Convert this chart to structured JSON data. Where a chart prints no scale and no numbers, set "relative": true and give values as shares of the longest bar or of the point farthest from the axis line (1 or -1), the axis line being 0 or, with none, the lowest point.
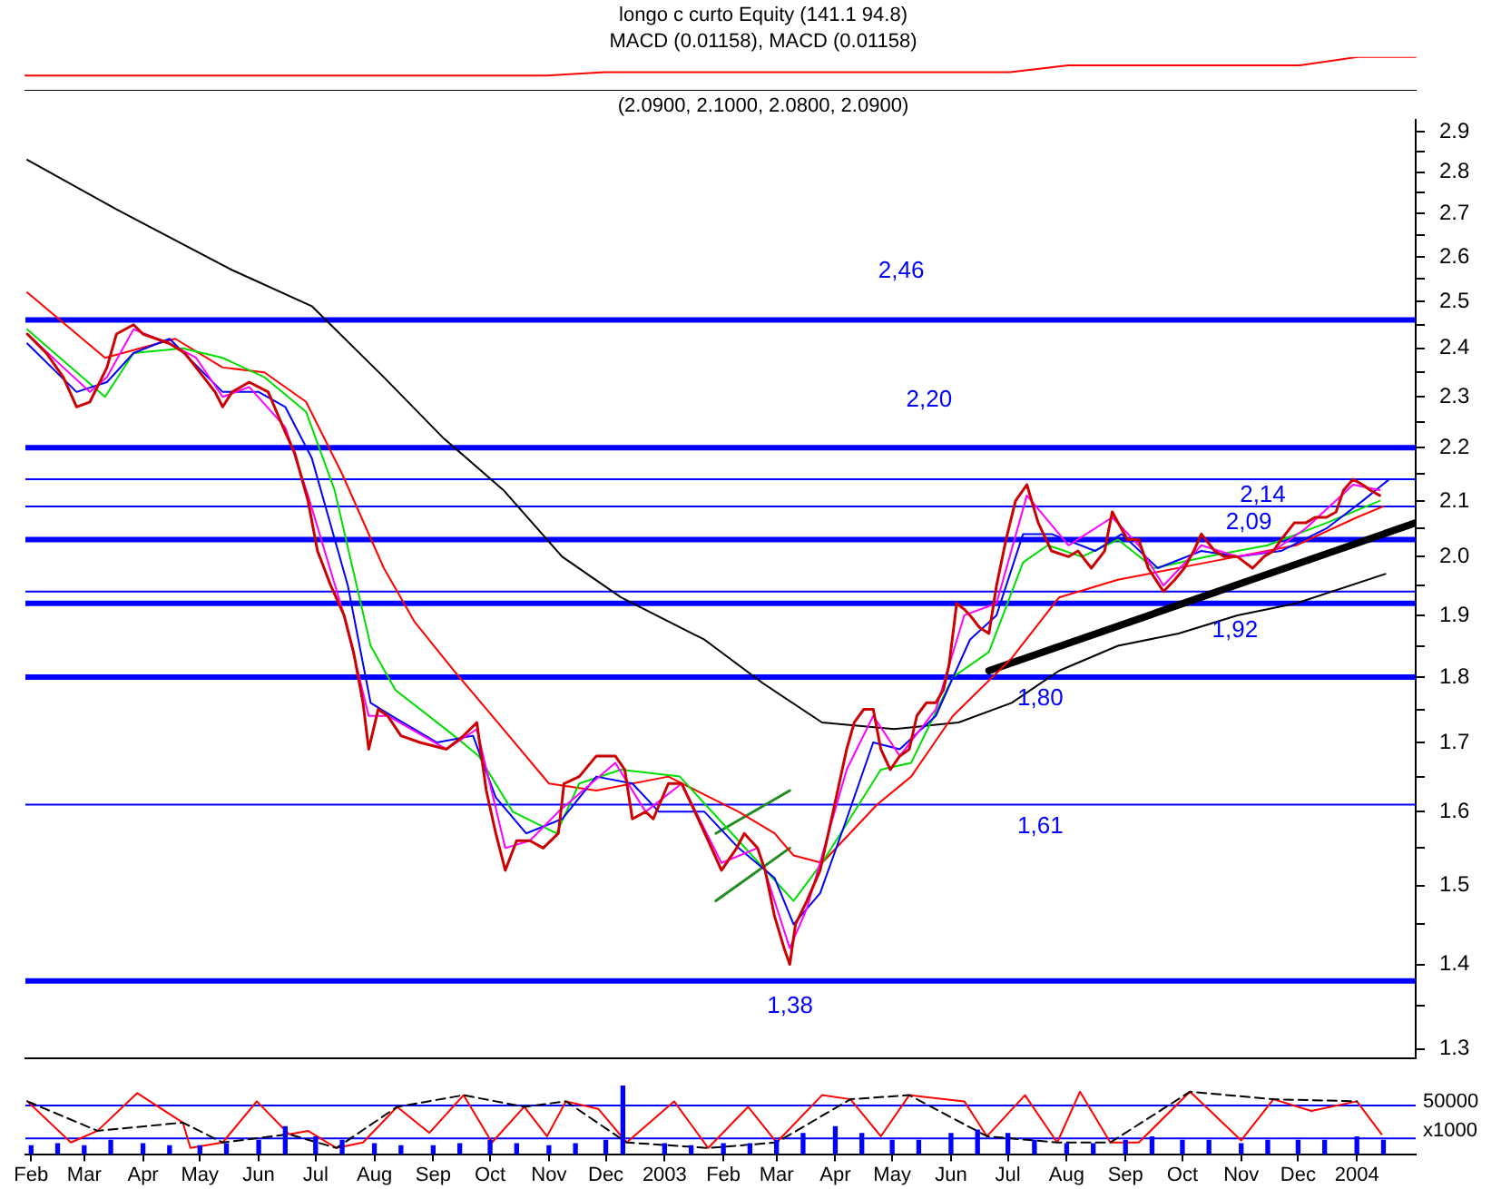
{
  "chart_data": [
    {
      "type": "line",
      "title": "longo c curto Equity (141.1 94.8)",
      "subtitle": "MACD (0.01158), MACD (0.01158)",
      "relative": true,
      "tick_labels": false,
      "categories": [
        null,
        null,
        null,
        null,
        null,
        null,
        null,
        null,
        null,
        null,
        null,
        null,
        null,
        null,
        null,
        null,
        null,
        null,
        null,
        null,
        null,
        null,
        null,
        null,
        null
      ],
      "series": [
        {
          "color": "#ff0000",
          "values": [
            0.45,
            0.45,
            0.45,
            0.45,
            0.45,
            0.45,
            0.45,
            0.45,
            0.45,
            0.45,
            0.55,
            0.55,
            0.55,
            0.55,
            0.55,
            0.55,
            0.55,
            0.55,
            0.75,
            0.75,
            0.75,
            0.75,
            0.75,
            1.0,
            1.0
          ]
        }
      ]
    },
    {
      "type": "line",
      "title": "(2.0900, 2.1000, 2.0800, 2.0900)",
      "log": true,
      "tick_labels": "y",
      "xlim": [
        "2002-01-29",
        "2004-02-01"
      ],
      "ylim": [
        1.29,
        2.93
      ],
      "yticks": [
        1.3,
        {
          "value": 1.35,
          "label": null
        },
        1.4,
        {
          "value": 1.45,
          "label": null
        },
        1.5,
        {
          "value": 1.55,
          "label": null
        },
        1.6,
        {
          "value": 1.65,
          "label": null
        },
        1.7,
        {
          "value": 1.75,
          "label": null
        },
        1.8,
        {
          "value": 1.85,
          "label": null
        },
        1.9,
        {
          "value": 1.95,
          "label": null
        },
        {
          "value": 2,
          "label": "2.0"
        },
        {
          "value": 2.05,
          "label": null
        },
        2.1,
        {
          "value": 2.15,
          "label": null
        },
        2.2,
        {
          "value": 2.25,
          "label": null
        },
        2.3,
        {
          "value": 2.35,
          "label": null
        },
        2.4,
        {
          "value": 2.45,
          "label": null
        },
        2.5,
        {
          "value": 2.55,
          "label": null
        },
        2.6,
        {
          "value": 2.65,
          "label": null
        },
        2.7,
        {
          "value": 2.75,
          "label": null
        },
        2.8,
        {
          "value": 2.85,
          "label": null
        },
        2.9
      ],
      "series": [
        {
          "color": "#cc0000",
          "x": [
            "2002-01-30",
            "2002-02-09",
            "2002-02-18",
            "2002-02-25",
            "2002-03-04",
            "2002-03-13",
            "2002-03-18",
            "2002-03-27",
            "2002-04-01",
            "2002-04-15",
            "2002-04-23",
            "2002-04-29",
            "2002-05-09",
            "2002-05-13",
            "2002-05-18",
            "2002-05-27",
            "2002-06-06",
            "2002-06-15",
            "2002-06-20",
            "2002-06-27",
            "2002-07-02",
            "2002-07-09",
            "2002-07-16",
            "2002-07-21",
            "2002-07-26",
            "2002-07-29",
            "2002-08-03",
            "2002-08-08",
            "2002-08-15",
            "2002-08-25",
            "2002-09-08",
            "2002-09-17",
            "2002-09-24",
            "2002-09-29",
            "2002-10-04",
            "2002-10-09",
            "2002-10-15",
            "2002-10-22",
            "2002-10-29",
            "2002-11-06",
            "2002-11-09",
            "2002-11-17",
            "2002-11-26",
            "2002-12-06",
            "2002-12-11",
            "2002-12-15",
            "2002-12-22",
            "2002-12-26",
            "2003-01-03",
            "2003-01-10",
            "2003-01-17",
            "2003-01-24",
            "2003-01-31",
            "2003-02-08",
            "2003-02-12",
            "2003-02-19",
            "2003-02-23",
            "2003-02-28",
            "2003-03-05",
            "2003-03-08",
            "2003-03-11",
            "2003-03-17",
            "2003-03-24",
            "2003-03-30",
            "2003-04-07",
            "2003-04-11",
            "2003-04-16",
            "2003-04-21",
            "2003-04-25",
            "2003-04-30",
            "2003-05-05",
            "2003-05-10",
            "2003-05-14",
            "2003-05-19",
            "2003-05-24",
            "2003-05-28",
            "2003-05-31",
            "2003-06-04",
            "2003-06-08",
            "2003-06-11",
            "2003-06-16",
            "2003-06-21",
            "2003-06-25",
            "2003-06-30",
            "2003-07-05",
            "2003-07-11",
            "2003-07-17",
            "2003-07-24",
            "2003-08-02",
            "2003-08-07",
            "2003-08-14",
            "2003-08-21",
            "2003-08-25",
            "2003-09-02",
            "2003-09-08",
            "2003-09-13",
            "2003-09-21",
            "2003-09-27",
            "2003-10-02",
            "2003-10-07",
            "2003-10-11",
            "2003-10-18",
            "2003-10-23",
            "2003-10-30",
            "2003-11-07",
            "2003-11-13",
            "2003-11-18",
            "2003-11-22",
            "2003-11-29",
            "2003-12-05",
            "2003-12-10",
            "2003-12-16",
            "2003-12-21",
            "2003-12-25",
            "2003-12-30",
            "2004-01-04",
            "2004-01-08",
            "2004-01-13"
          ],
          "values": [
            2.43,
            2.39,
            2.34,
            2.28,
            2.29,
            2.36,
            2.43,
            2.45,
            2.43,
            2.41,
            2.39,
            2.36,
            2.31,
            2.28,
            2.31,
            2.33,
            2.31,
            2.23,
            2.19,
            2.1,
            2.01,
            1.95,
            1.9,
            1.84,
            1.76,
            1.69,
            1.75,
            1.74,
            1.71,
            1.7,
            1.69,
            1.71,
            1.73,
            1.63,
            1.57,
            1.52,
            1.56,
            1.56,
            1.55,
            1.57,
            1.64,
            1.65,
            1.68,
            1.68,
            1.66,
            1.59,
            1.6,
            1.59,
            1.64,
            1.64,
            1.6,
            1.56,
            1.52,
            1.55,
            1.57,
            1.55,
            1.52,
            1.46,
            1.42,
            1.4,
            1.45,
            1.48,
            1.52,
            1.59,
            1.69,
            1.73,
            1.75,
            1.75,
            1.69,
            1.66,
            1.68,
            1.69,
            1.74,
            1.76,
            1.76,
            1.78,
            1.82,
            1.92,
            1.91,
            1.9,
            1.88,
            1.87,
            1.95,
            2.03,
            2.1,
            2.13,
            2.06,
            2.01,
            2.0,
            2.01,
            1.98,
            2.01,
            2.08,
            2.03,
            2.03,
            1.98,
            1.94,
            1.96,
            1.98,
            2.01,
            2.04,
            2.01,
            2.0,
            2.0,
            1.98,
            2.0,
            2.01,
            2.03,
            2.06,
            2.06,
            2.07,
            2.07,
            2.08,
            2.12,
            2.14,
            2.13,
            2.12,
            2.11
          ]
        },
        {
          "color": "#ff00ff",
          "x": [
            "2002-01-30",
            "2002-02-18",
            "2002-03-04",
            "2002-03-13",
            "2002-03-27",
            "2002-04-15",
            "2002-04-29",
            "2002-05-13",
            "2002-05-27",
            "2002-06-15",
            "2002-06-27",
            "2002-07-16",
            "2002-07-29",
            "2002-08-08",
            "2002-09-08",
            "2002-09-24",
            "2002-10-09",
            "2002-10-22",
            "2002-11-06",
            "2002-12-06",
            "2002-12-22",
            "2003-01-10",
            "2003-01-31",
            "2003-02-19",
            "2003-03-08",
            "2003-03-17",
            "2003-04-07",
            "2003-04-21",
            "2003-05-05",
            "2003-05-24",
            "2003-06-08",
            "2003-06-25",
            "2003-07-11",
            "2003-08-02",
            "2003-08-25",
            "2003-09-08",
            "2003-09-21",
            "2003-10-11",
            "2003-10-30",
            "2003-11-18",
            "2003-12-05",
            "2003-12-30",
            "2004-01-13"
          ],
          "values": [
            2.43,
            2.36,
            2.31,
            2.34,
            2.44,
            2.41,
            2.38,
            2.3,
            2.32,
            2.24,
            2.11,
            1.9,
            1.74,
            1.74,
            1.69,
            1.72,
            1.55,
            1.56,
            1.6,
            1.67,
            1.6,
            1.64,
            1.53,
            1.55,
            1.42,
            1.47,
            1.66,
            1.74,
            1.68,
            1.75,
            1.9,
            1.92,
            2.11,
            2.02,
            2.07,
            2.02,
            1.95,
            2.02,
            2.0,
            2.01,
            2.05,
            2.13,
            2.12
          ]
        },
        {
          "color": "#0000ff",
          "x": [
            "2002-01-30",
            "2002-02-25",
            "2002-03-13",
            "2002-03-27",
            "2002-04-15",
            "2002-05-13",
            "2002-06-01",
            "2002-06-15",
            "2002-06-29",
            "2002-07-18",
            "2002-07-30",
            "2002-08-10",
            "2002-09-03",
            "2002-09-22",
            "2002-10-04",
            "2002-10-20",
            "2002-11-08",
            "2002-11-26",
            "2002-12-15",
            "2002-12-29",
            "2003-01-22",
            "2003-02-09",
            "2003-02-28",
            "2003-03-10",
            "2003-03-24",
            "2003-04-07",
            "2003-04-21",
            "2003-05-05",
            "2003-05-24",
            "2003-06-11",
            "2003-06-25",
            "2003-07-09",
            "2003-07-24",
            "2003-08-16",
            "2003-08-30",
            "2003-09-18",
            "2003-10-11",
            "2003-10-30",
            "2003-11-22",
            "2003-12-16",
            "2004-01-04",
            "2004-01-18"
          ],
          "values": [
            2.41,
            2.31,
            2.33,
            2.39,
            2.42,
            2.31,
            2.31,
            2.28,
            2.18,
            1.95,
            1.76,
            1.74,
            1.7,
            1.71,
            1.62,
            1.57,
            1.59,
            1.65,
            1.64,
            1.6,
            1.6,
            1.55,
            1.51,
            1.45,
            1.49,
            1.59,
            1.7,
            1.69,
            1.74,
            1.86,
            1.9,
            2.04,
            2.04,
            2.01,
            2.04,
            1.98,
            2.01,
            2.0,
            2.01,
            2.05,
            2.1,
            2.14
          ]
        },
        {
          "color": "#00dd00",
          "x": [
            "2002-01-30",
            "2002-03-12",
            "2002-03-27",
            "2002-04-22",
            "2002-05-13",
            "2002-06-04",
            "2002-06-26",
            "2002-07-11",
            "2002-07-30",
            "2002-08-12",
            "2002-09-12",
            "2002-09-25",
            "2002-10-13",
            "2002-11-05",
            "2002-11-17",
            "2002-12-09",
            "2003-01-09",
            "2003-02-09",
            "2003-03-10",
            "2003-03-25",
            "2003-04-25",
            "2003-05-11",
            "2003-06-02",
            "2003-06-21",
            "2003-07-09",
            "2003-07-22",
            "2003-08-09",
            "2003-08-28",
            "2003-09-16",
            "2003-10-14",
            "2003-11-15",
            "2003-12-16",
            "2004-01-13"
          ],
          "values": [
            2.44,
            2.3,
            2.39,
            2.4,
            2.38,
            2.34,
            2.27,
            2.12,
            1.85,
            1.78,
            1.71,
            1.68,
            1.6,
            1.57,
            1.64,
            1.66,
            1.65,
            1.56,
            1.48,
            1.53,
            1.66,
            1.67,
            1.8,
            1.84,
            1.99,
            2.02,
            2.0,
            2.03,
            1.98,
            2.0,
            2.02,
            2.06,
            2.1
          ]
        },
        {
          "color": "#ff0000",
          "x": [
            "2002-01-30",
            "2002-03-12",
            "2002-04-18",
            "2002-05-13",
            "2002-06-04",
            "2002-06-26",
            "2002-07-15",
            "2002-08-06",
            "2002-08-22",
            "2002-09-12",
            "2002-10-08",
            "2002-11-01",
            "2002-11-26",
            "2003-01-03",
            "2003-02-09",
            "2003-02-28",
            "2003-03-10",
            "2003-03-25",
            "2003-04-23",
            "2003-05-11",
            "2003-06-02",
            "2003-07-03",
            "2003-07-28",
            "2003-08-28",
            "2003-10-14",
            "2003-11-30",
            "2004-01-01",
            "2004-01-15"
          ],
          "values": [
            2.52,
            2.38,
            2.42,
            2.36,
            2.35,
            2.29,
            2.15,
            1.98,
            1.89,
            1.81,
            1.72,
            1.64,
            1.63,
            1.65,
            1.6,
            1.57,
            1.54,
            1.53,
            1.61,
            1.65,
            1.74,
            1.83,
            1.93,
            1.96,
            1.99,
            2.02,
            2.07,
            2.09
          ]
        },
        {
          "color": "#000000",
          "x": [
            "2002-01-30",
            "2002-03-18",
            "2002-05-18",
            "2002-06-29",
            "2002-08-06",
            "2002-09-06",
            "2002-10-08",
            "2002-11-08",
            "2002-12-09",
            "2003-01-22",
            "2003-02-22",
            "2003-03-25",
            "2003-05-02",
            "2003-06-05",
            "2003-07-03",
            "2003-07-28",
            "2003-08-28",
            "2003-09-29",
            "2003-10-30",
            "2003-11-30",
            "2004-01-16"
          ],
          "values": [
            2.83,
            2.71,
            2.57,
            2.49,
            2.34,
            2.22,
            2.12,
            2.0,
            1.93,
            1.86,
            1.79,
            1.73,
            1.72,
            1.73,
            1.76,
            1.81,
            1.85,
            1.87,
            1.9,
            1.92,
            1.97
          ]
        },
        {
          "color": "#000000",
          "x": [
            "2003-06-21",
            "2004-02-01"
          ],
          "values": [
            1.81,
            2.06
          ]
        },
        {
          "color": "#228b22",
          "x": [
            "2003-01-28",
            "2003-03-08"
          ],
          "values": [
            1.57,
            1.63
          ]
        },
        {
          "color": "#228b22",
          "x": [
            "2003-01-28",
            "2003-03-08"
          ],
          "values": [
            1.48,
            1.55
          ]
        }
      ],
      "ref_lines": [
        {
          "axis": "y",
          "value": 2.46,
          "label": "2,46",
          "color": "#0000ff"
        },
        {
          "axis": "y",
          "value": 2.2,
          "label": "2,20",
          "color": "#0000ff"
        },
        {
          "axis": "y",
          "value": 2.14,
          "label": "2,14",
          "color": "#0000ff"
        },
        {
          "axis": "y",
          "value": 2.09,
          "label": "2,09",
          "color": "#0000ff"
        },
        {
          "axis": "y",
          "value": 2.03,
          "color": "#0000ff"
        },
        {
          "axis": "y",
          "value": 1.94,
          "color": "#0000ff"
        },
        {
          "axis": "y",
          "value": 1.92,
          "label": "1,92",
          "color": "#0000ff"
        },
        {
          "axis": "y",
          "value": 1.8,
          "label": "1,80",
          "color": "#0000ff"
        },
        {
          "axis": "y",
          "value": 1.61,
          "label": "1,61",
          "color": "#0000ff"
        },
        {
          "axis": "y",
          "value": 1.38,
          "label": "1,38",
          "color": "#0000ff"
        }
      ]
    },
    {
      "type": "line",
      "relative": true,
      "tick_labels": "x",
      "xlim": [
        "2002-01-29",
        "2004-02-01"
      ],
      "xticks": [
        {
          "value": "2002-02",
          "label": "Feb"
        },
        {
          "value": "2002-03",
          "label": "Mar"
        },
        {
          "value": "2002-04",
          "label": "Apr"
        },
        {
          "value": "2002-05",
          "label": "May"
        },
        {
          "value": "2002-06",
          "label": "Jun"
        },
        {
          "value": "2002-07",
          "label": "Jul"
        },
        {
          "value": "2002-08",
          "label": "Aug"
        },
        {
          "value": "2002-09",
          "label": "Sep"
        },
        {
          "value": "2002-10",
          "label": "Oct"
        },
        {
          "value": "2002-11",
          "label": "Nov"
        },
        {
          "value": "2002-12",
          "label": "Dec"
        },
        {
          "value": "2003-01",
          "label": "2003"
        },
        {
          "value": "2003-02",
          "label": "Feb"
        },
        {
          "value": "2003-03",
          "label": "Mar"
        },
        {
          "value": "2003-04",
          "label": "Apr"
        },
        {
          "value": "2003-05",
          "label": "May"
        },
        {
          "value": "2003-06",
          "label": "Jun"
        },
        {
          "value": "2003-07",
          "label": "Jul"
        },
        {
          "value": "2003-08",
          "label": "Aug"
        },
        {
          "value": "2003-09",
          "label": "Sep"
        },
        {
          "value": "2003-10",
          "label": "Oct"
        },
        {
          "value": "2003-11",
          "label": "Nov"
        },
        {
          "value": "2003-12",
          "label": "Dec"
        },
        {
          "value": "2004-01",
          "label": "2004"
        }
      ],
      "annotations": [
        "50000",
        "x1000"
      ],
      "series": [
        {
          "type": "bar",
          "color": "#0000ff",
          "x": [
            "2002-02-01",
            "2002-02-15",
            "2002-03-01",
            "2002-03-15",
            "2002-04-01",
            "2002-04-15",
            "2002-05-01",
            "2002-05-15",
            "2002-06-01",
            "2002-06-15",
            "2002-07-01",
            "2002-07-15",
            "2002-08-01",
            "2002-08-15",
            "2002-09-01",
            "2002-09-15",
            "2002-10-01",
            "2002-10-15",
            "2002-11-01",
            "2002-11-15",
            "2002-12-01",
            "2002-12-10",
            "2003-01-01",
            "2003-01-15",
            "2003-02-01",
            "2003-02-15",
            "2003-03-01",
            "2003-03-15",
            "2003-04-01",
            "2003-04-15",
            "2003-05-01",
            "2003-05-15",
            "2003-06-01",
            "2003-06-15",
            "2003-07-01",
            "2003-07-15",
            "2003-08-01",
            "2003-08-15",
            "2003-09-01",
            "2003-09-15",
            "2003-10-01",
            "2003-10-15",
            "2003-11-01",
            "2003-11-15",
            "2003-12-01",
            "2003-12-15",
            "2004-01-01",
            "2004-01-15"
          ],
          "values": [
            0.12,
            0.15,
            0.12,
            0.2,
            0.15,
            0.12,
            0.12,
            0.15,
            0.2,
            0.4,
            0.25,
            0.2,
            0.15,
            0.12,
            0.12,
            0.15,
            0.2,
            0.15,
            0.12,
            0.15,
            0.2,
            1.0,
            0.15,
            0.12,
            0.15,
            0.15,
            0.2,
            0.3,
            0.4,
            0.3,
            0.2,
            0.2,
            0.3,
            0.35,
            0.3,
            0.2,
            0.15,
            0.15,
            0.2,
            0.25,
            0.2,
            0.2,
            0.15,
            0.2,
            0.2,
            0.2,
            0.25,
            0.2
          ]
        },
        {
          "color": "#000000",
          "line_style": "dashed",
          "x": [
            "2002-01-30",
            "2002-03-08",
            "2002-04-22",
            "2002-05-13",
            "2002-06-17",
            "2002-07-12",
            "2002-08-13",
            "2002-09-17",
            "2002-10-19",
            "2002-11-10",
            "2002-12-12",
            "2003-01-24",
            "2003-03-01",
            "2003-04-09",
            "2003-05-10",
            "2003-06-20",
            "2003-07-27",
            "2003-08-24",
            "2003-10-05",
            "2003-11-18",
            "2004-01-01"
          ],
          "values": [
            0.77,
            0.34,
            0.46,
            0.17,
            0.29,
            0.09,
            0.69,
            0.86,
            0.69,
            0.77,
            0.17,
            0.09,
            0.17,
            0.8,
            0.86,
            0.26,
            0.17,
            0.17,
            0.91,
            0.8,
            0.77
          ]
        },
        {
          "color": "#ff0000",
          "x": [
            "2002-01-30",
            "2002-02-22",
            "2002-03-08",
            "2002-03-29",
            "2002-04-22",
            "2002-04-26",
            "2002-05-13",
            "2002-05-31",
            "2002-06-17",
            "2002-06-27",
            "2002-07-12",
            "2002-07-26",
            "2002-08-13",
            "2002-08-30",
            "2002-09-17",
            "2002-10-02",
            "2002-10-19",
            "2002-10-31",
            "2002-11-10",
            "2002-11-27",
            "2002-12-12",
            "2003-01-06",
            "2003-01-24",
            "2003-02-14",
            "2003-03-01",
            "2003-03-25",
            "2003-04-09",
            "2003-04-25",
            "2003-05-10",
            "2003-06-08",
            "2003-06-20",
            "2003-07-10",
            "2003-07-27",
            "2003-08-08",
            "2003-08-24",
            "2003-09-08",
            "2003-10-05",
            "2003-11-01",
            "2003-11-18",
            "2003-12-08",
            "2004-01-01",
            "2004-01-14"
          ],
          "values": [
            0.77,
            0.17,
            0.34,
            0.89,
            0.46,
            0.09,
            0.17,
            0.77,
            0.29,
            0.34,
            0.09,
            0.17,
            0.69,
            0.31,
            0.86,
            0.17,
            0.69,
            0.26,
            0.77,
            0.66,
            0.17,
            0.77,
            0.09,
            0.69,
            0.17,
            0.86,
            0.8,
            0.26,
            0.86,
            0.77,
            0.26,
            0.86,
            0.17,
            0.91,
            0.17,
            0.17,
            0.91,
            0.2,
            0.8,
            0.63,
            0.77,
            0.29
          ]
        }
      ],
      "ref_lines": [
        {
          "axis": "y",
          "value": 0.71,
          "color": "#0000ff"
        },
        {
          "axis": "y",
          "value": 0.23,
          "color": "#0000ff"
        }
      ]
    }
  ]
}
